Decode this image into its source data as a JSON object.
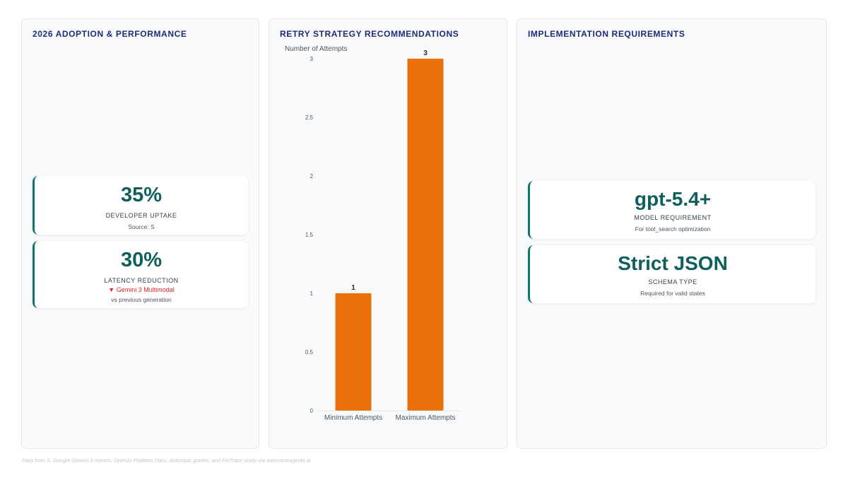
{
  "panels": {
    "adoption_title": "2026 ADOPTION & PERFORMANCE",
    "retry_title": "RETRY STRATEGY RECOMMENDATIONS",
    "requirements_title": "IMPLEMENTATION REQUIREMENTS"
  },
  "adoption": {
    "uptake": {
      "value": "35%",
      "label": "DEVELOPER UPTAKE",
      "sub": "Source: S"
    },
    "latency": {
      "value": "30%",
      "label": "LATENCY REDUCTION",
      "trend": "▼ Gemini 3 Multimodal",
      "sub": "vs previous generation"
    }
  },
  "requirements": {
    "model": {
      "value": "gpt-5.4+",
      "label": "MODEL REQUIREMENT",
      "sub": "For tool_search optimization"
    },
    "schema": {
      "value": "Strict JSON",
      "label": "SCHEMA TYPE",
      "sub": "Required for valid states"
    }
  },
  "chart_data": {
    "type": "bar",
    "title": "",
    "ylabel": "Number of Attempts",
    "xlabel": "",
    "categories": [
      "Minimum Attempts",
      "Maximum Attempts"
    ],
    "values": [
      1,
      3
    ],
    "ylim": [
      0,
      3
    ],
    "yticks": [
      "0",
      "0.5",
      "1",
      "1.5",
      "2",
      "2.5",
      "3"
    ],
    "data_labels": [
      "1",
      "3"
    ],
    "bar_color": "#e8710a",
    "grid": false
  },
  "footer": "Data from S, Google Gemini 3 reports, OpenAI Platform Docs, Anthropic guides, and FinTrace study via awesomeagents.ai",
  "colors": {
    "accent": "#0f766e",
    "kpi_value": "#0f5f5c",
    "title": "#1e2a78",
    "trend_down": "#dc2626"
  }
}
